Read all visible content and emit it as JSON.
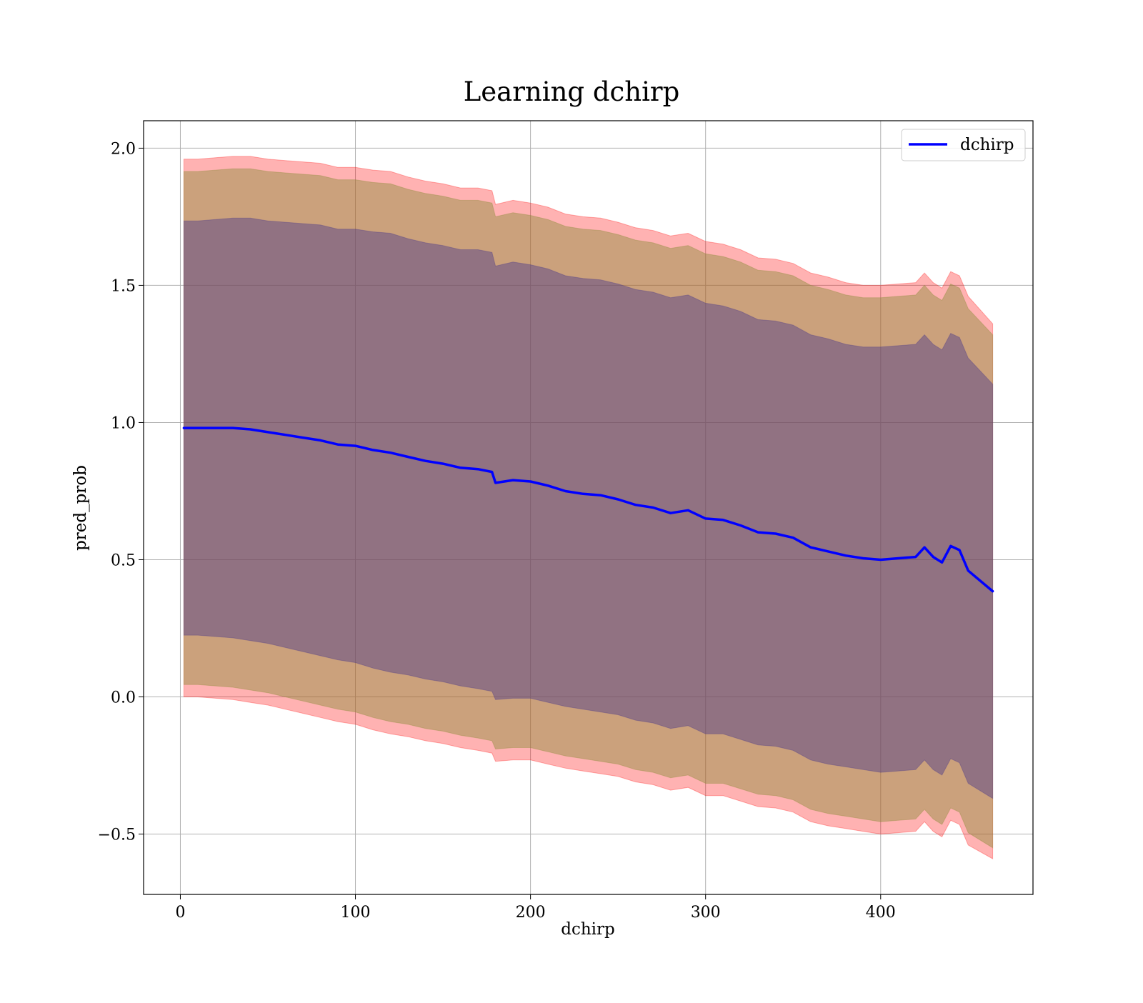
{
  "chart_data": {
    "type": "line",
    "title": "Learning dchirp",
    "xlabel": "dchirp",
    "ylabel": "pred_prob",
    "xlim": [
      -21,
      487
    ],
    "ylim": [
      -0.72,
      2.1
    ],
    "xticks": [
      0,
      100,
      200,
      300,
      400
    ],
    "xtick_labels": [
      "0",
      "100",
      "200",
      "300",
      "400"
    ],
    "yticks": [
      -0.5,
      0.0,
      0.5,
      1.0,
      1.5,
      2.0
    ],
    "ytick_labels": [
      "−0.5",
      "0.0",
      "0.5",
      "1.0",
      "1.5",
      "2.0"
    ],
    "grid": true,
    "legend": {
      "position": "top-right",
      "entries": [
        "dchirp"
      ]
    },
    "colors": {
      "line": "#0000ff",
      "outer_band": "#ff0000",
      "middle_band": "#8b8b3a",
      "inner_band": "#4b3a8a"
    },
    "series": [
      {
        "name": "dchirp",
        "x": [
          2,
          10,
          20,
          30,
          40,
          50,
          60,
          70,
          80,
          90,
          100,
          110,
          120,
          130,
          140,
          150,
          160,
          170,
          178,
          180,
          190,
          200,
          210,
          220,
          230,
          240,
          250,
          260,
          270,
          280,
          290,
          300,
          310,
          320,
          330,
          340,
          350,
          360,
          370,
          380,
          390,
          400,
          410,
          420,
          425,
          430,
          435,
          440,
          445,
          450,
          464
        ],
        "y": [
          0.98,
          0.98,
          0.98,
          0.98,
          0.975,
          0.965,
          0.955,
          0.945,
          0.935,
          0.92,
          0.915,
          0.9,
          0.89,
          0.875,
          0.86,
          0.85,
          0.835,
          0.83,
          0.82,
          0.78,
          0.79,
          0.785,
          0.77,
          0.75,
          0.74,
          0.735,
          0.72,
          0.7,
          0.69,
          0.67,
          0.68,
          0.65,
          0.645,
          0.625,
          0.6,
          0.595,
          0.58,
          0.545,
          0.53,
          0.515,
          0.505,
          0.5,
          0.505,
          0.51,
          0.545,
          0.51,
          0.49,
          0.55,
          0.535,
          0.46,
          0.385
        ]
      }
    ],
    "bands": {
      "outer": {
        "lower": [
          0.0,
          0.0,
          -0.005,
          -0.01,
          -0.02,
          -0.03,
          -0.045,
          -0.06,
          -0.075,
          -0.09,
          -0.1,
          -0.12,
          -0.135,
          -0.145,
          -0.16,
          -0.17,
          -0.185,
          -0.195,
          -0.205,
          -0.235,
          -0.23,
          -0.23,
          -0.245,
          -0.26,
          -0.27,
          -0.28,
          -0.29,
          -0.31,
          -0.32,
          -0.34,
          -0.33,
          -0.36,
          -0.36,
          -0.38,
          -0.4,
          -0.405,
          -0.42,
          -0.455,
          -0.47,
          -0.48,
          -0.49,
          -0.5,
          -0.495,
          -0.49,
          -0.455,
          -0.49,
          -0.51,
          -0.45,
          -0.465,
          -0.54,
          -0.59
        ],
        "upper": [
          1.96,
          1.96,
          1.965,
          1.97,
          1.97,
          1.96,
          1.955,
          1.95,
          1.945,
          1.93,
          1.93,
          1.92,
          1.915,
          1.895,
          1.88,
          1.87,
          1.855,
          1.855,
          1.845,
          1.795,
          1.81,
          1.8,
          1.785,
          1.76,
          1.75,
          1.745,
          1.73,
          1.71,
          1.7,
          1.68,
          1.69,
          1.66,
          1.65,
          1.63,
          1.6,
          1.595,
          1.58,
          1.545,
          1.53,
          1.51,
          1.5,
          1.5,
          1.505,
          1.51,
          1.545,
          1.51,
          1.49,
          1.55,
          1.535,
          1.46,
          1.36
        ]
      },
      "middle": {
        "lower": [
          0.045,
          0.045,
          0.04,
          0.035,
          0.025,
          0.015,
          0.0,
          -0.015,
          -0.03,
          -0.045,
          -0.055,
          -0.075,
          -0.09,
          -0.1,
          -0.115,
          -0.125,
          -0.14,
          -0.15,
          -0.16,
          -0.19,
          -0.185,
          -0.185,
          -0.2,
          -0.215,
          -0.225,
          -0.235,
          -0.245,
          -0.265,
          -0.275,
          -0.295,
          -0.285,
          -0.315,
          -0.315,
          -0.335,
          -0.355,
          -0.36,
          -0.375,
          -0.41,
          -0.425,
          -0.435,
          -0.445,
          -0.455,
          -0.45,
          -0.445,
          -0.41,
          -0.445,
          -0.465,
          -0.405,
          -0.42,
          -0.495,
          -0.55
        ],
        "upper": [
          1.915,
          1.915,
          1.92,
          1.925,
          1.925,
          1.915,
          1.91,
          1.905,
          1.9,
          1.885,
          1.885,
          1.875,
          1.87,
          1.85,
          1.835,
          1.825,
          1.81,
          1.81,
          1.8,
          1.75,
          1.765,
          1.755,
          1.74,
          1.715,
          1.705,
          1.7,
          1.685,
          1.665,
          1.655,
          1.635,
          1.645,
          1.615,
          1.605,
          1.585,
          1.555,
          1.55,
          1.535,
          1.5,
          1.485,
          1.465,
          1.455,
          1.455,
          1.46,
          1.465,
          1.5,
          1.465,
          1.445,
          1.505,
          1.49,
          1.415,
          1.32
        ]
      },
      "inner": {
        "lower": [
          0.225,
          0.225,
          0.22,
          0.215,
          0.205,
          0.195,
          0.18,
          0.165,
          0.15,
          0.135,
          0.125,
          0.105,
          0.09,
          0.08,
          0.065,
          0.055,
          0.04,
          0.03,
          0.02,
          -0.01,
          -0.005,
          -0.005,
          -0.02,
          -0.035,
          -0.045,
          -0.055,
          -0.065,
          -0.085,
          -0.095,
          -0.115,
          -0.105,
          -0.135,
          -0.135,
          -0.155,
          -0.175,
          -0.18,
          -0.195,
          -0.23,
          -0.245,
          -0.255,
          -0.265,
          -0.275,
          -0.27,
          -0.265,
          -0.23,
          -0.265,
          -0.285,
          -0.225,
          -0.24,
          -0.315,
          -0.37
        ],
        "upper": [
          1.735,
          1.735,
          1.74,
          1.745,
          1.745,
          1.735,
          1.73,
          1.725,
          1.72,
          1.705,
          1.705,
          1.695,
          1.69,
          1.67,
          1.655,
          1.645,
          1.63,
          1.63,
          1.62,
          1.57,
          1.585,
          1.575,
          1.56,
          1.535,
          1.525,
          1.52,
          1.505,
          1.485,
          1.475,
          1.455,
          1.465,
          1.435,
          1.425,
          1.405,
          1.375,
          1.37,
          1.355,
          1.32,
          1.305,
          1.285,
          1.275,
          1.275,
          1.28,
          1.285,
          1.32,
          1.285,
          1.265,
          1.325,
          1.31,
          1.235,
          1.14
        ]
      }
    }
  }
}
